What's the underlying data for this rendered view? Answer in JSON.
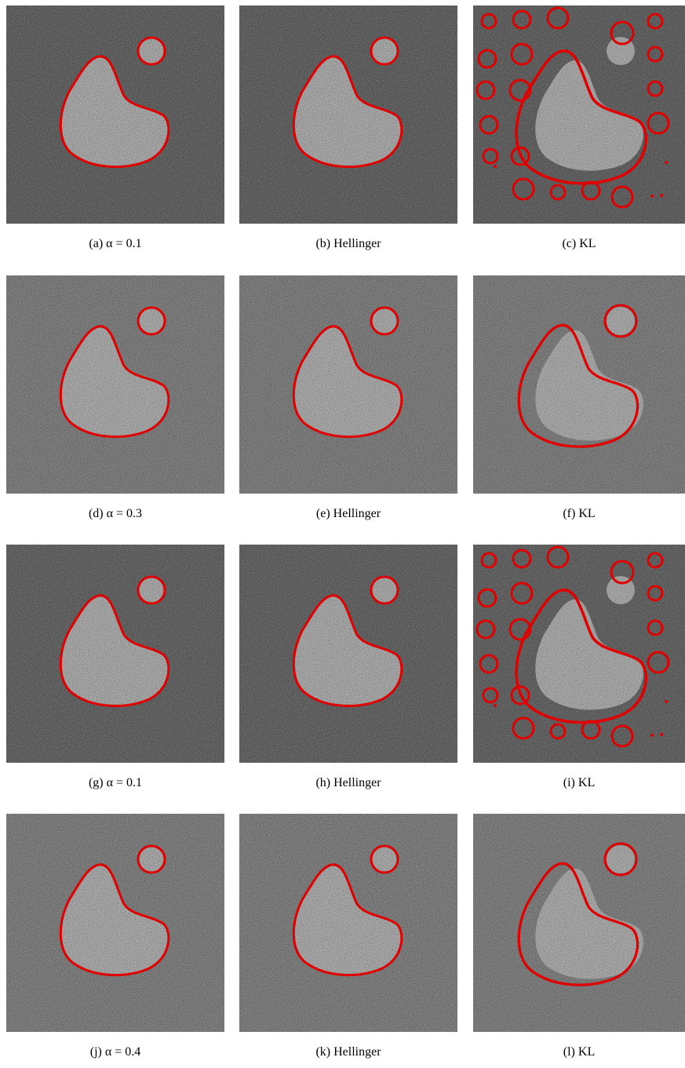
{
  "figure": {
    "panels": [
      {
        "caption": "(a) α = 0.1"
      },
      {
        "caption": "(b) Hellinger"
      },
      {
        "caption": "(c) KL"
      },
      {
        "caption": "(d) α = 0.3"
      },
      {
        "caption": "(e) Hellinger"
      },
      {
        "caption": "(f) KL"
      },
      {
        "caption": "(g) α = 0.1"
      },
      {
        "caption": "(h) Hellinger"
      },
      {
        "caption": "(i) KL"
      },
      {
        "caption": "(j) α = 0.4"
      },
      {
        "caption": "(k) Hellinger"
      },
      {
        "caption": "(l) KL"
      }
    ]
  }
}
